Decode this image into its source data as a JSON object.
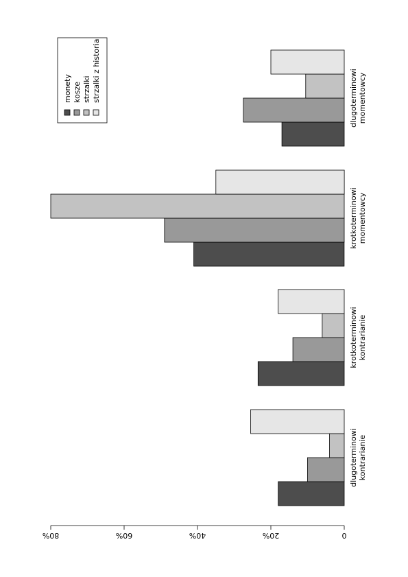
{
  "chart_data": {
    "type": "bar",
    "orientation": "horizontal-rotated",
    "categories": [
      [
        "dlugoterminowi",
        "kontrarianie"
      ],
      [
        "krotkoterminowi",
        "kontrarianie"
      ],
      [
        "krotkoterminowi",
        "momentowcy"
      ],
      [
        "dlugoterminowi",
        "momentowcy"
      ]
    ],
    "series": [
      {
        "name": "monety",
        "color": "#4d4d4d",
        "values": [
          18,
          23.5,
          41,
          17
        ]
      },
      {
        "name": "kosze",
        "color": "#999999",
        "values": [
          10,
          14,
          49,
          27.5
        ]
      },
      {
        "name": "strzalki",
        "color": "#c2c2c2",
        "values": [
          4,
          6,
          80,
          10.5
        ]
      },
      {
        "name": "strzalki z historia",
        "color": "#e6e6e6",
        "values": [
          25.5,
          18,
          35,
          20
        ]
      }
    ],
    "value_axis": {
      "ticks": [
        0,
        20,
        40,
        60,
        80
      ],
      "tick_labels": [
        "0",
        "20%",
        "40%",
        "60%",
        "80%"
      ],
      "range": [
        0,
        80
      ]
    },
    "grid": false,
    "legend": {
      "position": "top-right"
    },
    "title": "",
    "xlabel": "",
    "ylabel": ""
  }
}
